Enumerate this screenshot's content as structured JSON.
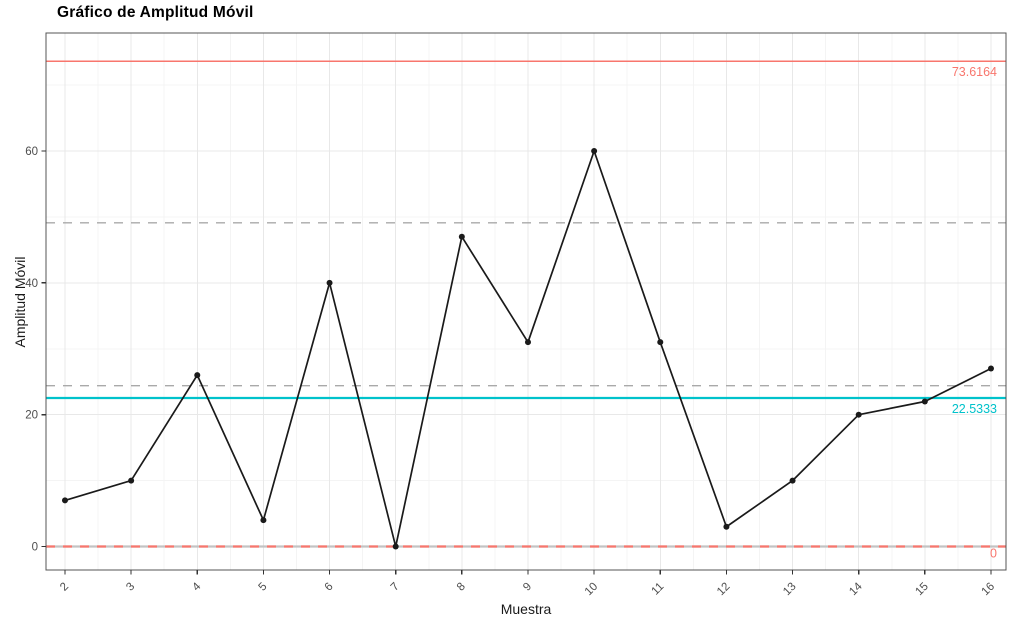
{
  "title": "Gráfico de Amplitud Móvil",
  "chart_data": {
    "type": "line",
    "title": "Gráfico de Amplitud Móvil",
    "xlabel": "Muestra",
    "ylabel": "Amplitud Móvil",
    "x": [
      2,
      3,
      4,
      5,
      6,
      7,
      8,
      9,
      10,
      11,
      12,
      13,
      14,
      15,
      16
    ],
    "values": [
      7,
      10,
      26,
      4,
      40,
      0,
      47,
      31,
      60,
      31,
      3,
      10,
      20,
      22,
      27
    ],
    "x_ticks": [
      2,
      3,
      4,
      5,
      6,
      7,
      8,
      9,
      10,
      11,
      12,
      13,
      14,
      15,
      16
    ],
    "y_ticks": [
      0,
      20,
      40,
      60
    ],
    "y_minor_ticks": [
      10,
      30,
      50,
      70
    ],
    "xlim": [
      1.713,
      16.227
    ],
    "ylim": [
      -3.56,
      77.9
    ],
    "grid": true,
    "legend": "none",
    "reference_lines": [
      {
        "name": "upper-control-limit",
        "value": 73.6164,
        "label": "73.6164",
        "style": "solid",
        "color": "#F8766D",
        "width": 1.6
      },
      {
        "name": "gray-dashed-upper",
        "value": 49.1,
        "label": "",
        "style": "dashed",
        "color": "#A9A9A9",
        "width": 1.4
      },
      {
        "name": "gray-dashed-lower",
        "value": 24.4,
        "label": "",
        "style": "dashed",
        "color": "#A9A9A9",
        "width": 1.4
      },
      {
        "name": "center-line",
        "value": 22.5333,
        "label": "22.5333",
        "style": "solid",
        "color": "#00C2CB",
        "width": 2.2
      },
      {
        "name": "lower-control-limit",
        "value": 0,
        "label": "0",
        "style": "dashed",
        "color": "#F8766D",
        "width": 2.2,
        "underlay_color": "#C3C3C3"
      }
    ],
    "colors": {
      "series_line": "#1a1a1a",
      "point": "#1a1a1a",
      "grid_major": "#e8e8e8",
      "grid_minor": "#f4f4f4",
      "panel_border": "#545454",
      "tick_mark": "#333333",
      "tick_label": "#4d4d4d",
      "background": "#ffffff"
    }
  }
}
